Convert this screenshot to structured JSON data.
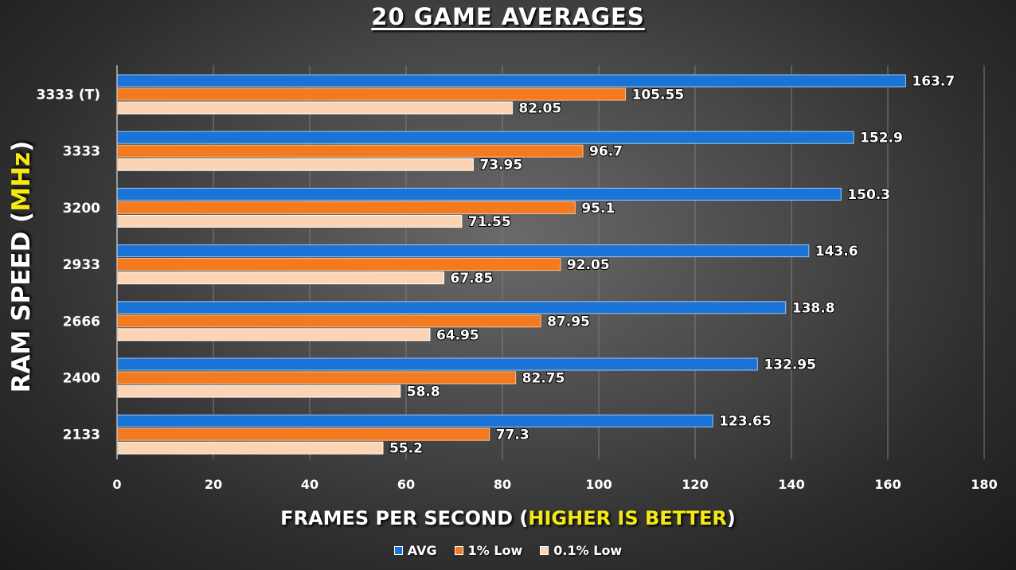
{
  "title": "20 GAME AVERAGES",
  "ylabel": {
    "main": "RAM SPEED (",
    "highlight": "MHz",
    "end": ")"
  },
  "xlabel": {
    "main": "FRAMES PER SECOND (",
    "highlight": "HIGHER IS BETTER",
    "end": ")"
  },
  "colors": {
    "avg": "#1a73d6",
    "low1": "#f47a1f",
    "low01": "#fcd4b4",
    "highlight": "#f4ea12"
  },
  "chart_data": {
    "type": "bar",
    "orientation": "horizontal",
    "title": "20 GAME AVERAGES",
    "xlabel": "FRAMES PER SECOND (HIGHER IS BETTER)",
    "ylabel": "RAM SPEED (MHz)",
    "xlim": [
      0,
      180
    ],
    "xticks": [
      0,
      20,
      40,
      60,
      80,
      100,
      120,
      140,
      160,
      180
    ],
    "grid": "vertical",
    "legend_position": "bottom",
    "categories": [
      "3333 (T)",
      "3333",
      "3200",
      "2933",
      "2666",
      "2400",
      "2133"
    ],
    "series": [
      {
        "name": "AVG",
        "label": "163.7",
        "values": [
          163.7,
          152.9,
          150.3,
          143.6,
          138.8,
          132.95,
          123.65
        ],
        "labels": [
          "163.7",
          "152.9",
          "150.3",
          "143.6",
          "138.8",
          "132.95",
          "123.65"
        ]
      },
      {
        "name": "1% Low",
        "values": [
          105.55,
          96.7,
          95.1,
          92.05,
          87.95,
          82.75,
          77.3
        ],
        "labels": [
          "105.55",
          "96.7",
          "95.1",
          "92.05",
          "87.95",
          "82.75",
          "77.3"
        ]
      },
      {
        "name": "0.1% Low",
        "values": [
          82.05,
          73.95,
          71.55,
          67.85,
          64.95,
          58.8,
          55.2
        ],
        "labels": [
          "82.05",
          "73.95",
          "71.55",
          "67.85",
          "64.95",
          "58.8",
          "55.2"
        ]
      }
    ]
  },
  "legend": [
    "AVG",
    "1% Low",
    "0.1% Low"
  ]
}
